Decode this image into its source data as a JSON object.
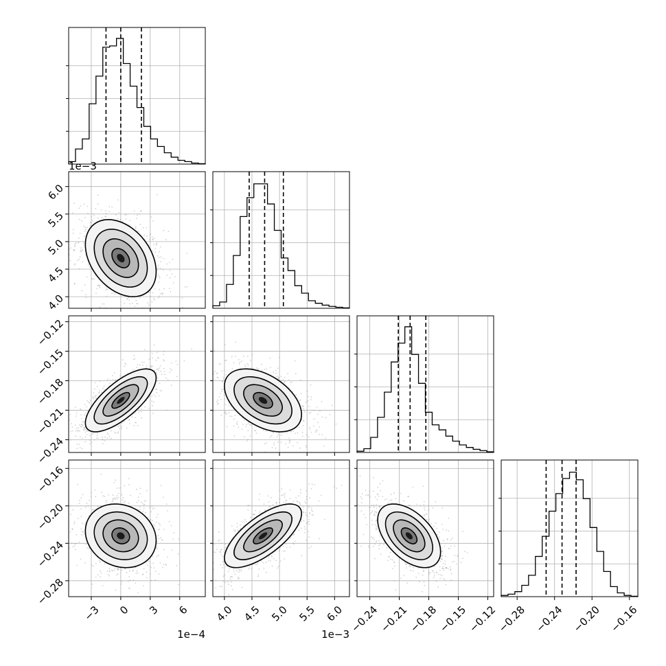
{
  "chart_data": {
    "type": "corner",
    "parameters": [
      {
        "range": [
          -5.3,
          8.6
        ],
        "ticks": [
          -3,
          0,
          3,
          6
        ],
        "tick_labels": [
          "−3",
          "0",
          "3",
          "6"
        ],
        "offset_label": "1e−4",
        "center": 0.0,
        "sigma": 1.8,
        "quantiles": [
          -1.5,
          0.0,
          2.1
        ],
        "hist": [
          0.02,
          0.12,
          0.2,
          0.48,
          0.7,
          0.93,
          0.94,
          1.0,
          0.8,
          0.62,
          0.45,
          0.3,
          0.2,
          0.14,
          0.09,
          0.055,
          0.03,
          0.02,
          0.008,
          0.003
        ]
      },
      {
        "range": [
          0.00379,
          0.00627
        ],
        "ticks": [
          0.004,
          0.0045,
          0.005,
          0.0055,
          0.006
        ],
        "tick_labels": [
          "4.0",
          "4.5",
          "5.0",
          "5.5",
          "6.0"
        ],
        "offset_label": "1e−3",
        "center": 0.0047,
        "sigma": 0.00035,
        "quantiles": [
          0.00445,
          0.00473,
          0.00507
        ],
        "hist": [
          0.02,
          0.05,
          0.19,
          0.42,
          0.73,
          0.88,
          0.99,
          0.99,
          0.83,
          0.62,
          0.4,
          0.3,
          0.18,
          0.12,
          0.06,
          0.04,
          0.025,
          0.015,
          0.008,
          0.003
        ]
      },
      {
        "range": [
          -0.253,
          -0.114
        ],
        "ticks": [
          -0.24,
          -0.21,
          -0.18,
          -0.15,
          -0.12
        ],
        "tick_labels": [
          "−0.24",
          "−0.21",
          "−0.18",
          "−0.15",
          "−0.12"
        ],
        "offset_label": "",
        "center": -0.2,
        "sigma": 0.016,
        "quantiles": [
          -0.211,
          -0.199,
          -0.183
        ],
        "hist": [
          0.01,
          0.03,
          0.12,
          0.28,
          0.48,
          0.72,
          0.87,
          1.0,
          0.78,
          0.55,
          0.32,
          0.22,
          0.18,
          0.13,
          0.09,
          0.06,
          0.04,
          0.025,
          0.015,
          0.005
        ]
      },
      {
        "range": [
          -0.297,
          -0.151
        ],
        "ticks": [
          -0.28,
          -0.24,
          -0.2,
          -0.16
        ],
        "tick_labels": [
          "−0.28",
          "−0.24",
          "−0.20",
          "−0.16"
        ],
        "offset_label": "",
        "center": -0.232,
        "sigma": 0.017,
        "quantiles": [
          -0.249,
          -0.232,
          -0.217
        ],
        "hist": [
          0.01,
          0.02,
          0.04,
          0.09,
          0.17,
          0.32,
          0.48,
          0.68,
          0.82,
          0.94,
          0.99,
          0.93,
          0.78,
          0.55,
          0.36,
          0.2,
          0.08,
          0.03,
          0.01,
          0.003
        ]
      }
    ],
    "correlations": [
      [
        1,
        -0.35,
        0.72,
        -0.15
      ],
      [
        -0.35,
        1,
        -0.45,
        0.7
      ],
      [
        0.72,
        -0.45,
        1,
        -0.5
      ],
      [
        -0.15,
        0.7,
        -0.5,
        1
      ]
    ],
    "contour_levels_sigma": [
      0.5,
      1.0,
      1.5,
      2.0
    ],
    "grid": true
  }
}
